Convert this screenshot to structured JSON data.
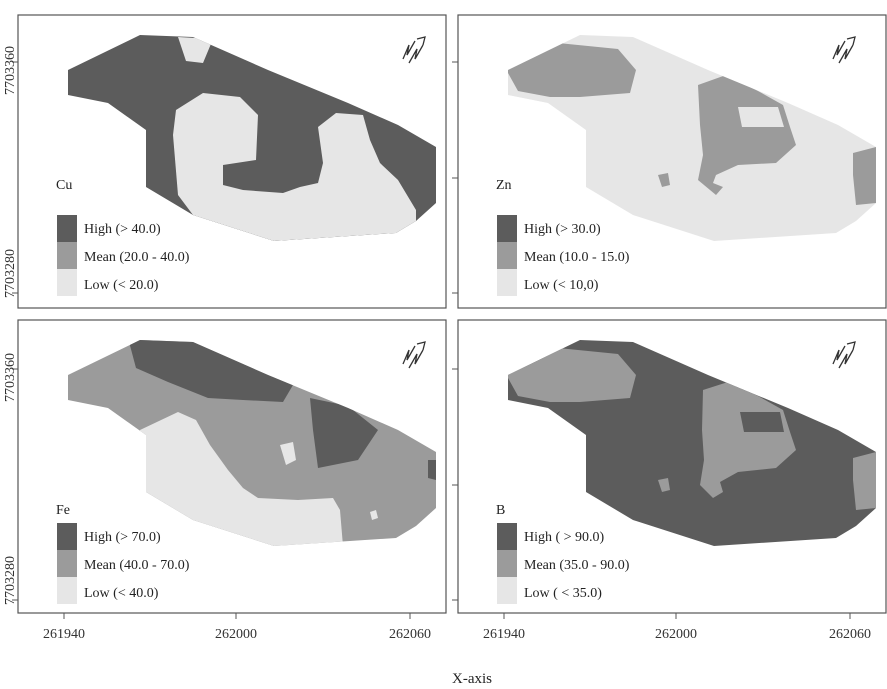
{
  "figure": {
    "x_axis_title": "X-axis",
    "y_tick_labels": [
      "7703360",
      "7703280"
    ],
    "x_tick_labels": [
      "261940",
      "262000",
      "262060"
    ]
  },
  "colors": {
    "high": "#5c5c5c",
    "mean": "#9b9b9b",
    "low": "#e6e6e6",
    "frame": "#555555",
    "background": "#ffffff"
  },
  "panels": [
    {
      "variable": "Cu",
      "legend": [
        {
          "level": "high",
          "label": "High (> 40.0)"
        },
        {
          "level": "mean",
          "label": "Mean (20.0 - 40.0)"
        },
        {
          "level": "low",
          "label": "Low (< 20.0)"
        }
      ]
    },
    {
      "variable": "Zn",
      "legend": [
        {
          "level": "high",
          "label": "High (> 30.0)"
        },
        {
          "level": "mean",
          "label": "Mean (10.0 - 15.0)"
        },
        {
          "level": "low",
          "label": "Low (< 10,0)"
        }
      ]
    },
    {
      "variable": "Fe",
      "legend": [
        {
          "level": "high",
          "label": "High (> 70.0)"
        },
        {
          "level": "mean",
          "label": "Mean (40.0 - 70.0)"
        },
        {
          "level": "low",
          "label": "Low (< 40.0)"
        }
      ]
    },
    {
      "variable": "B",
      "legend": [
        {
          "level": "high",
          "label": "High ( > 90.0)"
        },
        {
          "level": "mean",
          "label": "Mean (35.0 - 90.0)"
        },
        {
          "level": "low",
          "label": "Low ( < 35.0)"
        }
      ]
    }
  ],
  "north_arrow_icon": "north-arrow-icon"
}
